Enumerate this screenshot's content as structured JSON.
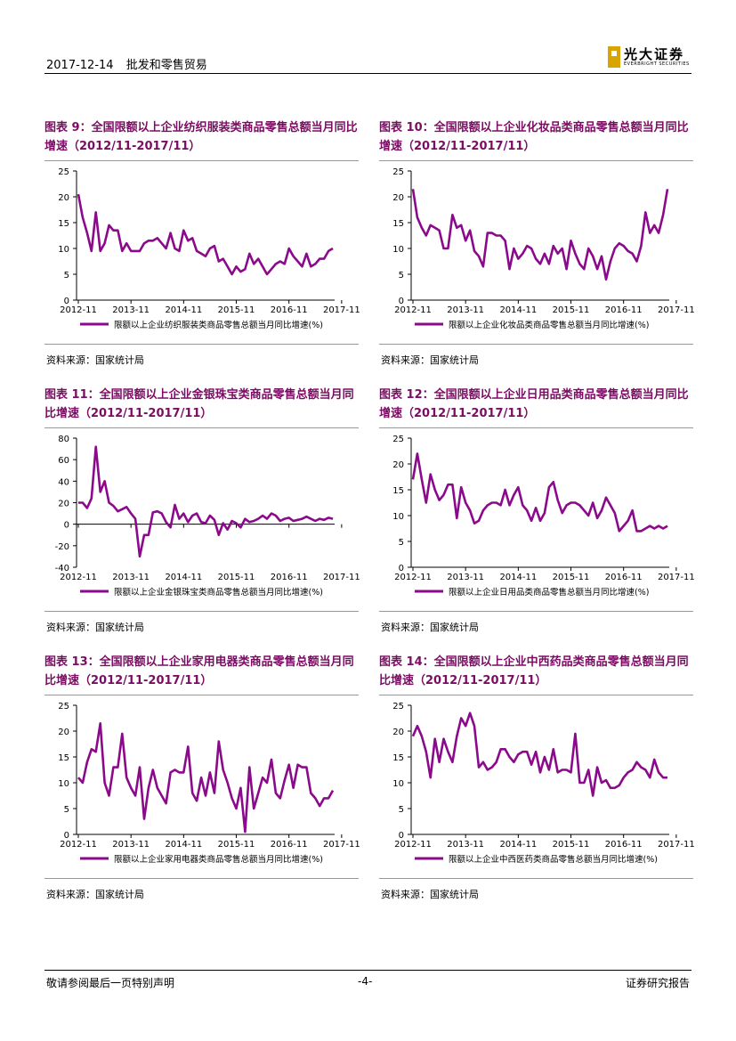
{
  "header": {
    "date": "2017-12-14",
    "title": "批发和零售贸易"
  },
  "logo": {
    "cn": "光大证券",
    "en": "EVERBRIGHT SECURITIES"
  },
  "footer": {
    "left": "敬请参阅最后一页特别声明",
    "center": "-4-",
    "right": "证券研究报告"
  },
  "colors": {
    "series": "#8b0a8b",
    "title": "#7b0c63"
  },
  "charts": [
    {
      "title": "图表 9：全国限额以上企业纺织服装类商品零售总额当月同比增速（2012/11-2017/11）",
      "source": "资料来源：国家统计局",
      "chart_data": {
        "type": "line",
        "x_ticks": [
          "2012-11",
          "2013-11",
          "2014-11",
          "2015-11",
          "2016-11",
          "2017-11"
        ],
        "ylim": [
          0,
          25
        ],
        "yticks": [
          0,
          5,
          10,
          15,
          20,
          25
        ],
        "series": [
          {
            "name": "限额以上企业纺织服装类商品零售总额当月同比增速(%)",
            "values": [
              20.5,
              16,
              13,
              9.5,
              17,
              9.5,
              11,
              14.5,
              13.5,
              13.5,
              9.5,
              11,
              9.5,
              9.5,
              9.5,
              11,
              11.5,
              11.5,
              12,
              11,
              10,
              13,
              10,
              9.5,
              13.5,
              11.5,
              12,
              9.5,
              9,
              8.5,
              10,
              10.5,
              7.5,
              8,
              6.5,
              5,
              6.5,
              5.5,
              6,
              9,
              7,
              8,
              6.5,
              5,
              6,
              7,
              7.5,
              7,
              10,
              8.5,
              7.5,
              6.5,
              9,
              6.5,
              7,
              8,
              8,
              9.5,
              10
            ]
          }
        ]
      }
    },
    {
      "title": "图表 10：全国限额以上企业化妆品类商品零售总额当月同比增速（2012/11-2017/11）",
      "source": "资料来源：国家统计局",
      "chart_data": {
        "type": "line",
        "x_ticks": [
          "2012-11",
          "2013-11",
          "2014-11",
          "2015-11",
          "2016-11",
          "2017-11"
        ],
        "ylim": [
          0,
          25
        ],
        "yticks": [
          0,
          5,
          10,
          15,
          20,
          25
        ],
        "series": [
          {
            "name": "限额以上企业化妆品类商品零售总额当月同比增速(%)",
            "values": [
              21.5,
              16,
              14,
              12.5,
              14.5,
              14,
              13.5,
              10,
              10,
              16.5,
              14,
              14.5,
              11.5,
              13.5,
              9.5,
              8.5,
              6.5,
              13,
              13,
              12.5,
              12.5,
              11.5,
              6,
              10,
              8,
              9,
              10.5,
              10,
              8,
              7,
              9,
              7,
              10.5,
              9,
              10,
              6,
              11.5,
              9,
              7,
              6,
              10,
              8.5,
              6,
              8.5,
              4,
              7.5,
              10,
              11,
              10.5,
              9.5,
              9,
              7.5,
              10.5,
              17,
              13,
              14.5,
              13,
              16.5,
              21.5
            ]
          }
        ]
      }
    },
    {
      "title": "图表 11：全国限额以上企业金银珠宝类商品零售总额当月同比增速（2012/11-2017/11）",
      "source": "资料来源：国家统计局",
      "chart_data": {
        "type": "line",
        "x_ticks": [
          "2012-11",
          "2013-11",
          "2014-11",
          "2015-11",
          "2016-11",
          "2017-11"
        ],
        "ylim": [
          -40,
          80
        ],
        "yticks": [
          -40,
          -20,
          0,
          20,
          40,
          60,
          80
        ],
        "series": [
          {
            "name": "限额以上企业金银珠宝类商品零售总额当月同比增速(%)",
            "values": [
              20,
              20,
              15,
              24,
              72,
              30,
              40,
              20,
              17,
              12,
              14,
              16,
              10,
              5,
              -30,
              -10,
              -10,
              11,
              12,
              10,
              2,
              -3,
              18,
              5,
              10,
              2,
              8,
              10,
              2,
              1,
              8,
              4,
              -10,
              1,
              -5,
              3,
              1,
              -3,
              5,
              2,
              3,
              5,
              8,
              5,
              10,
              8,
              3,
              5,
              6,
              3,
              4,
              5,
              7,
              5,
              3,
              5,
              4,
              6,
              5
            ]
          }
        ]
      }
    },
    {
      "title": "图表 12：全国限额以上企业日用品类商品零售总额当月同比增速（2012/11-2017/11）",
      "source": "资料来源：国家统计局",
      "chart_data": {
        "type": "line",
        "x_ticks": [
          "2012-11",
          "2013-11",
          "2014-11",
          "2015-11",
          "2016-11",
          "2017-11"
        ],
        "ylim": [
          0,
          25
        ],
        "yticks": [
          0,
          5,
          10,
          15,
          20,
          25
        ],
        "series": [
          {
            "name": "限额以上企业日用品类商品零售总额当月同比增速(%)",
            "values": [
              17,
              22,
              17,
              12.5,
              18,
              15,
              13,
              14,
              16,
              16,
              9.5,
              15.5,
              12.5,
              11,
              8.5,
              9,
              11,
              12,
              12.5,
              12.5,
              12,
              15,
              12,
              14,
              15.5,
              12,
              11,
              9,
              11.5,
              9,
              10.5,
              15.5,
              16.5,
              13,
              10.5,
              12,
              12.5,
              12.5,
              12,
              11,
              10,
              12.5,
              9.5,
              11,
              13.5,
              12,
              10.5,
              7,
              8,
              9,
              11,
              7,
              7,
              7.5,
              8,
              7.5,
              8,
              7.5,
              8
            ]
          }
        ]
      }
    },
    {
      "title": "图表 13：全国限额以上企业家用电器类商品零售总额当月同比增速（2012/11-2017/11）",
      "source": "资料来源：国家统计局",
      "chart_data": {
        "type": "line",
        "x_ticks": [
          "2012-11",
          "2013-11",
          "2014-11",
          "2015-11",
          "2016-11",
          "2017-11"
        ],
        "ylim": [
          0,
          25
        ],
        "yticks": [
          0,
          5,
          10,
          15,
          20,
          25
        ],
        "series": [
          {
            "name": "限额以上企业家用电器类商品零售总额当月同比增速(%)",
            "values": [
              11,
              10,
              14,
              16.5,
              16,
              21.5,
              10,
              7.5,
              13,
              13,
              19.5,
              11,
              9,
              7.5,
              13,
              3,
              9,
              12.5,
              9,
              7.5,
              6,
              12,
              12.5,
              12,
              12,
              17,
              8,
              6.5,
              11,
              7.5,
              12,
              8,
              18,
              12.5,
              10,
              7,
              5,
              9,
              0.5,
              13,
              5,
              8,
              11,
              10,
              14.5,
              8,
              7,
              10.5,
              13.5,
              9,
              13.5,
              13,
              13,
              8,
              7,
              5.5,
              7,
              7,
              8.5
            ]
          }
        ]
      }
    },
    {
      "title": "图表 14：全国限额以上企业中西药品类商品零售总额当月同比增速（2012/11-2017/11）",
      "source": "资料来源：国家统计局",
      "chart_data": {
        "type": "line",
        "x_ticks": [
          "2012-11",
          "2013-11",
          "2014-11",
          "2015-11",
          "2016-11",
          "2017-11"
        ],
        "ylim": [
          0,
          25
        ],
        "yticks": [
          0,
          5,
          10,
          15,
          20,
          25
        ],
        "series": [
          {
            "name": "限额以上企业中西医药类商品零售总额当月同比增速(%)",
            "values": [
              19,
              21,
              19,
              16,
              11,
              18.5,
              14,
              18.5,
              16,
              14,
              19,
              22.5,
              21,
              23.5,
              21,
              13,
              14,
              12.5,
              13,
              14,
              16.5,
              16.5,
              15,
              14,
              15.5,
              16,
              16,
              13.5,
              16,
              12,
              15,
              12.5,
              16.5,
              12,
              12.5,
              12.5,
              12,
              19.5,
              10,
              10,
              12.5,
              7.5,
              13,
              10,
              10.5,
              9,
              9,
              9.5,
              11,
              12,
              12.5,
              14,
              13,
              12.5,
              11,
              14.5,
              12,
              11,
              11
            ]
          }
        ]
      }
    }
  ]
}
